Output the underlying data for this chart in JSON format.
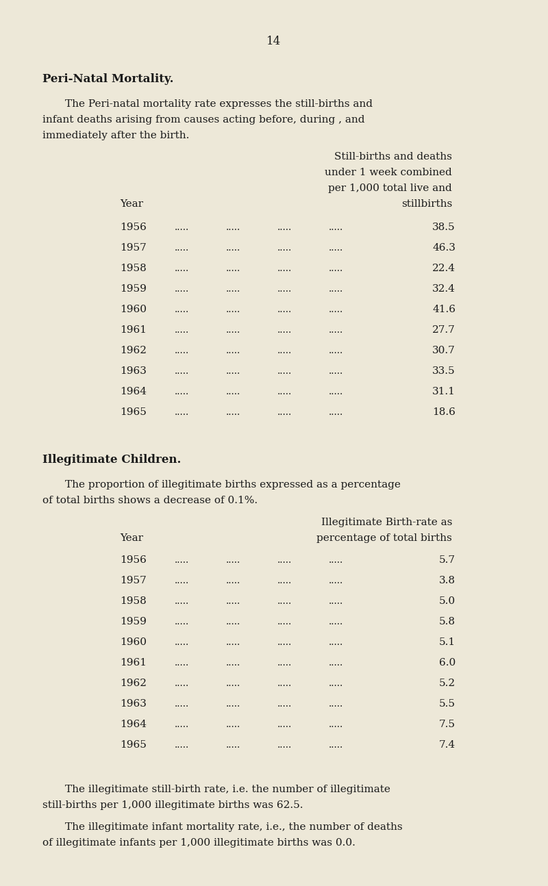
{
  "page_number": "14",
  "bg_color": "#ede8d8",
  "text_color": "#1a1a1a",
  "section1_title": "Peri-Natal Mortality.",
  "section1_intro_line1": "The Peri-natal mortality rate expresses the still-births and",
  "section1_intro_line2": "infant deaths arising from causes acting before, during , and",
  "section1_intro_line3": "immediately after the birth.",
  "section1_col_header_line1": "Still-births and deaths",
  "section1_col_header_line2": "under 1 week combined",
  "section1_col_header_line3": "per 1,000 total live and",
  "section1_col_header_line4": "stillbirths",
  "section1_row_header": "Year",
  "section1_years": [
    "1956",
    "1957",
    "1958",
    "1959",
    "1960",
    "1961",
    "1962",
    "1963",
    "1964",
    "1965"
  ],
  "section1_values": [
    "38.5",
    "46.3",
    "22.4",
    "32.4",
    "41.6",
    "27.7",
    "30.7",
    "33.5",
    "31.1",
    "18.6"
  ],
  "section2_title": "Illegitimate Children.",
  "section2_intro_line1": "The proportion of illegitimate births expressed as a percentage",
  "section2_intro_line2": "of total births shows a decrease of 0.1%.",
  "section2_col_header_line1": "Illegitimate Birth-rate as",
  "section2_col_header_line2": "percentage of total births",
  "section2_row_header": "Year",
  "section2_years": [
    "1956",
    "1957",
    "1958",
    "1959",
    "1960",
    "1961",
    "1962",
    "1963",
    "1964",
    "1965"
  ],
  "section2_values": [
    "5.7",
    "3.8",
    "5.0",
    "5.8",
    "5.1",
    "6.0",
    "5.2",
    "5.5",
    "7.5",
    "7.4"
  ],
  "footer1_line1": "The illegitimate still-birth rate, i.e. the number of illegitimate",
  "footer1_line2": "still-births per 1,000 illegitimate births was 62.5.",
  "footer2_line1": "The illegitimate infant mortality rate, i.e., the number of deaths",
  "footer2_line2": "of illegitimate infants per 1,000 illegitimate births was 0.0."
}
